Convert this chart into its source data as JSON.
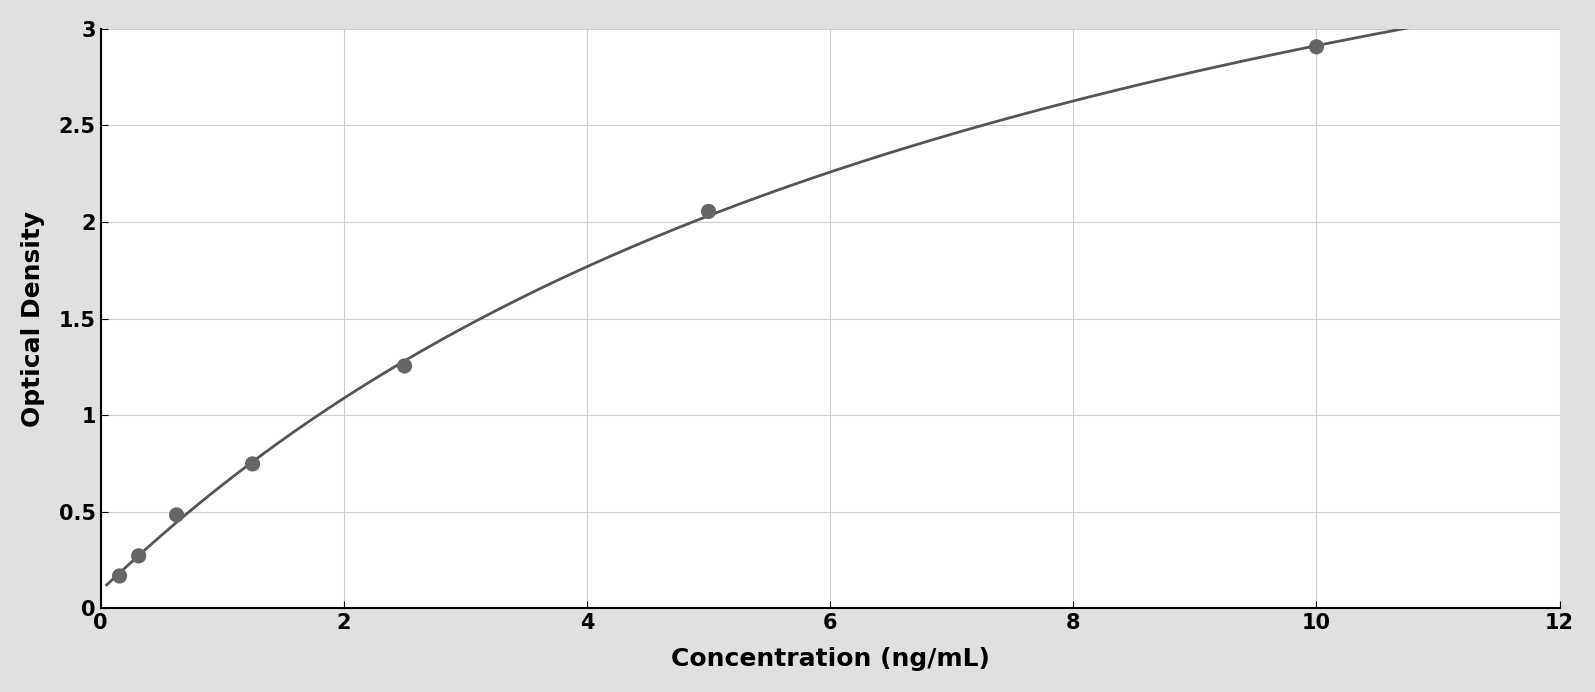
{
  "data_points_x": [
    0.156,
    0.313,
    0.625,
    1.25,
    2.5,
    5.0,
    10.0
  ],
  "data_points_y": [
    0.168,
    0.272,
    0.484,
    0.748,
    1.255,
    2.055,
    2.907
  ],
  "point_color": "#666666",
  "line_color": "#555555",
  "xlabel": "Concentration (ng/mL)",
  "ylabel": "Optical Density",
  "xlim": [
    0,
    12
  ],
  "ylim": [
    0,
    3.0
  ],
  "xticks": [
    0,
    2,
    4,
    6,
    8,
    10,
    12
  ],
  "yticks": [
    0,
    0.5,
    1.0,
    1.5,
    2.0,
    2.5,
    3.0
  ],
  "xlabel_fontsize": 18,
  "ylabel_fontsize": 18,
  "tick_fontsize": 15,
  "grid_color": "#cccccc",
  "background_color": "#ffffff",
  "outer_border_color": "#000000",
  "figure_bg": "#e0e0e0",
  "point_size": 120,
  "line_width": 2.0
}
